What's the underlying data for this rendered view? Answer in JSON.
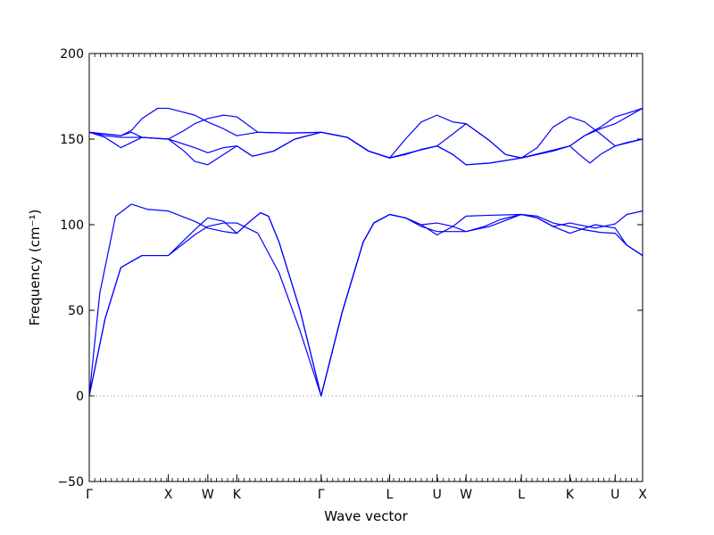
{
  "chart_data": {
    "type": "line",
    "title": "",
    "xlabel": "Wave vector",
    "ylabel": "Frequency (cm⁻¹)",
    "ylim": [
      -50,
      200
    ],
    "yticks": [
      -50,
      0,
      50,
      100,
      150,
      200
    ],
    "xlim": [
      0,
      10.5
    ],
    "grid": false,
    "line_color": "#0000ff",
    "zero_line_color": "#888888",
    "high_symmetry_points": [
      {
        "label": "Γ",
        "x": 0
      },
      {
        "label": "X",
        "x": 1.5
      },
      {
        "label": "W",
        "x": 2.25
      },
      {
        "label": "K",
        "x": 2.8
      },
      {
        "label": "Γ",
        "x": 4.4
      },
      {
        "label": "L",
        "x": 5.7
      },
      {
        "label": "U",
        "x": 6.6
      },
      {
        "label": "W",
        "x": 7.15
      },
      {
        "label": "L",
        "x": 8.2
      },
      {
        "label": "K",
        "x": 9.12
      },
      {
        "label": "U",
        "x": 9.98
      },
      {
        "label": "X",
        "x": 10.5
      }
    ],
    "series": [
      {
        "values": [
          [
            0,
            0
          ],
          [
            0.3,
            45
          ],
          [
            0.6,
            75
          ],
          [
            1.0,
            82
          ],
          [
            1.5,
            82
          ],
          [
            2.0,
            94
          ],
          [
            2.25,
            99
          ],
          [
            2.55,
            101
          ],
          [
            2.8,
            101
          ],
          [
            3.2,
            95
          ],
          [
            3.6,
            72
          ],
          [
            4.0,
            38
          ],
          [
            4.4,
            0
          ],
          [
            4.8,
            49
          ],
          [
            5.2,
            90
          ],
          [
            5.4,
            101
          ],
          [
            5.7,
            106
          ],
          [
            6.0,
            104
          ],
          [
            6.3,
            99
          ],
          [
            6.6,
            96
          ],
          [
            6.9,
            96
          ],
          [
            7.15,
            96
          ],
          [
            7.5,
            99
          ],
          [
            7.8,
            103
          ],
          [
            8.2,
            106
          ],
          [
            8.5,
            105
          ],
          [
            8.8,
            101
          ],
          [
            9.12,
            99
          ],
          [
            9.4,
            97
          ],
          [
            9.7,
            95.5
          ],
          [
            9.98,
            95
          ],
          [
            10.2,
            88
          ],
          [
            10.5,
            82
          ]
        ]
      },
      {
        "values": [
          [
            0,
            0
          ],
          [
            0.3,
            45
          ],
          [
            0.6,
            75
          ],
          [
            1.0,
            82
          ],
          [
            1.5,
            82
          ],
          [
            2.0,
            97
          ],
          [
            2.25,
            104
          ],
          [
            2.55,
            102
          ],
          [
            2.8,
            95
          ],
          [
            3.05,
            102
          ],
          [
            3.25,
            107
          ],
          [
            3.4,
            105
          ],
          [
            3.6,
            90
          ],
          [
            4.0,
            50
          ],
          [
            4.4,
            0
          ],
          [
            4.8,
            49
          ],
          [
            5.2,
            90
          ],
          [
            5.4,
            101
          ],
          [
            5.7,
            106
          ],
          [
            6.0,
            104
          ],
          [
            6.3,
            100
          ],
          [
            6.6,
            94
          ],
          [
            6.9,
            99
          ],
          [
            7.15,
            105
          ],
          [
            7.6,
            105.5
          ],
          [
            8.2,
            106
          ],
          [
            8.5,
            104
          ],
          [
            8.8,
            99
          ],
          [
            9.12,
            95
          ],
          [
            9.6,
            100
          ],
          [
            9.98,
            98
          ],
          [
            10.2,
            88
          ],
          [
            10.5,
            82
          ]
        ]
      },
      {
        "values": [
          [
            0,
            0
          ],
          [
            0.2,
            60
          ],
          [
            0.5,
            105
          ],
          [
            0.8,
            112
          ],
          [
            1.1,
            109
          ],
          [
            1.5,
            108
          ],
          [
            2.0,
            102
          ],
          [
            2.25,
            98
          ],
          [
            2.55,
            96
          ],
          [
            2.8,
            95
          ],
          [
            3.05,
            102
          ],
          [
            3.25,
            107
          ],
          [
            3.4,
            105
          ],
          [
            3.6,
            90
          ],
          [
            4.0,
            50
          ],
          [
            4.4,
            0
          ],
          [
            4.8,
            49
          ],
          [
            5.2,
            90
          ],
          [
            5.4,
            101
          ],
          [
            5.7,
            106
          ],
          [
            6.0,
            104
          ],
          [
            6.3,
            100
          ],
          [
            6.6,
            101
          ],
          [
            6.9,
            99
          ],
          [
            7.15,
            96
          ],
          [
            7.6,
            99
          ],
          [
            8.2,
            106
          ],
          [
            8.5,
            104
          ],
          [
            8.8,
            99
          ],
          [
            9.12,
            101
          ],
          [
            9.6,
            98
          ],
          [
            9.98,
            100.5
          ],
          [
            10.2,
            106
          ],
          [
            10.5,
            108
          ]
        ]
      },
      {
        "values": [
          [
            0,
            154
          ],
          [
            0.3,
            151
          ],
          [
            0.6,
            145
          ],
          [
            0.8,
            148
          ],
          [
            1.0,
            151
          ],
          [
            1.5,
            150
          ],
          [
            2.0,
            145
          ],
          [
            2.25,
            142
          ],
          [
            2.55,
            145
          ],
          [
            2.8,
            146
          ],
          [
            3.1,
            140
          ],
          [
            3.5,
            143
          ],
          [
            3.9,
            150
          ],
          [
            4.4,
            154
          ],
          [
            4.9,
            151
          ],
          [
            5.3,
            143
          ],
          [
            5.7,
            139
          ],
          [
            6.2,
            143
          ],
          [
            6.6,
            146
          ],
          [
            6.9,
            141
          ],
          [
            7.15,
            135
          ],
          [
            7.6,
            136
          ],
          [
            8.0,
            138
          ],
          [
            8.2,
            139
          ],
          [
            8.6,
            142
          ],
          [
            9.12,
            146
          ],
          [
            9.4,
            152
          ],
          [
            9.7,
            156
          ],
          [
            9.98,
            159
          ],
          [
            10.5,
            168
          ]
        ]
      },
      {
        "values": [
          [
            0,
            154
          ],
          [
            0.3,
            152
          ],
          [
            0.6,
            151
          ],
          [
            1.0,
            151
          ],
          [
            1.5,
            150
          ],
          [
            1.8,
            143
          ],
          [
            2.0,
            137
          ],
          [
            2.25,
            135
          ],
          [
            2.55,
            141
          ],
          [
            2.8,
            146
          ],
          [
            3.1,
            140
          ],
          [
            3.5,
            143
          ],
          [
            3.9,
            150
          ],
          [
            4.4,
            154
          ],
          [
            4.9,
            151
          ],
          [
            5.3,
            143
          ],
          [
            5.7,
            139
          ],
          [
            6.2,
            143
          ],
          [
            6.6,
            146
          ],
          [
            6.9,
            141
          ],
          [
            7.15,
            135
          ],
          [
            7.6,
            136
          ],
          [
            8.0,
            138
          ],
          [
            8.2,
            139
          ],
          [
            8.6,
            142
          ],
          [
            9.12,
            146
          ],
          [
            9.3,
            141
          ],
          [
            9.5,
            136
          ],
          [
            9.7,
            141
          ],
          [
            9.98,
            146
          ],
          [
            10.5,
            150
          ]
        ]
      },
      {
        "values": [
          [
            0,
            154
          ],
          [
            0.3,
            153
          ],
          [
            0.6,
            152
          ],
          [
            0.8,
            155
          ],
          [
            1.0,
            162
          ],
          [
            1.3,
            168
          ],
          [
            1.5,
            168
          ],
          [
            2.0,
            164
          ],
          [
            2.25,
            160
          ],
          [
            2.55,
            156
          ],
          [
            2.8,
            152
          ],
          [
            3.2,
            154
          ],
          [
            3.8,
            153.5
          ],
          [
            4.4,
            154
          ],
          [
            4.9,
            151
          ],
          [
            5.3,
            143
          ],
          [
            5.7,
            139
          ],
          [
            6.0,
            150
          ],
          [
            6.3,
            160
          ],
          [
            6.6,
            164
          ],
          [
            6.9,
            160
          ],
          [
            7.15,
            159
          ],
          [
            7.6,
            149
          ],
          [
            7.9,
            141
          ],
          [
            8.2,
            139
          ],
          [
            8.5,
            145
          ],
          [
            8.8,
            157
          ],
          [
            9.12,
            163
          ],
          [
            9.4,
            160
          ],
          [
            9.7,
            153
          ],
          [
            9.98,
            146
          ],
          [
            10.2,
            148
          ],
          [
            10.5,
            150
          ]
        ]
      },
      {
        "values": [
          [
            0,
            154
          ],
          [
            0.3,
            153
          ],
          [
            0.6,
            152
          ],
          [
            0.8,
            154
          ],
          [
            1.0,
            151
          ],
          [
            1.5,
            150
          ],
          [
            1.8,
            155
          ],
          [
            2.0,
            159
          ],
          [
            2.25,
            162
          ],
          [
            2.55,
            164
          ],
          [
            2.8,
            163
          ],
          [
            3.2,
            154
          ],
          [
            3.8,
            153.5
          ],
          [
            4.4,
            154
          ],
          [
            4.9,
            151
          ],
          [
            5.3,
            143
          ],
          [
            5.7,
            139
          ],
          [
            6.0,
            141
          ],
          [
            6.3,
            144
          ],
          [
            6.6,
            146
          ],
          [
            6.9,
            153
          ],
          [
            7.15,
            159
          ],
          [
            7.6,
            149
          ],
          [
            7.9,
            141
          ],
          [
            8.2,
            139
          ],
          [
            8.5,
            141
          ],
          [
            8.8,
            143
          ],
          [
            9.12,
            146
          ],
          [
            9.4,
            152
          ],
          [
            9.7,
            157
          ],
          [
            9.98,
            163
          ],
          [
            10.2,
            165
          ],
          [
            10.5,
            168
          ]
        ]
      }
    ]
  }
}
